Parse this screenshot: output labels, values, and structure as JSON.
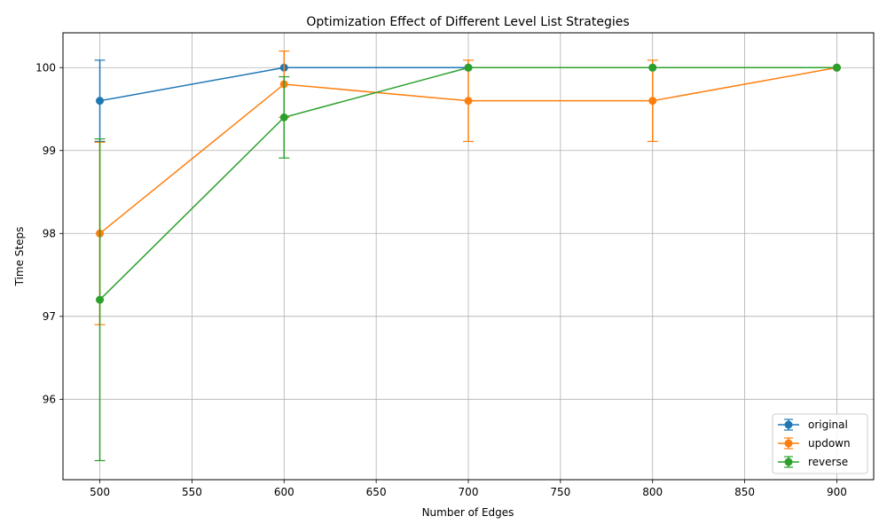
{
  "chart_data": {
    "type": "line",
    "title": "Optimization Effect of Different Level List Strategies",
    "xlabel": "Number of Edges",
    "ylabel": "Time Steps",
    "xlim": [
      480,
      920
    ],
    "ylim": [
      95.03,
      100.42
    ],
    "x_ticks": [
      500,
      550,
      600,
      650,
      700,
      750,
      800,
      850,
      900
    ],
    "y_ticks": [
      96,
      97,
      98,
      99,
      100
    ],
    "grid": true,
    "legend_position": "lower-right",
    "series": [
      {
        "name": "original",
        "color": "#1f77b4",
        "x": [
          500,
          600,
          700,
          800,
          900
        ],
        "y": [
          99.6,
          100.0,
          100.0,
          100.0,
          100.0
        ],
        "err": [
          0.49,
          0.0,
          0.0,
          0.0,
          0.0
        ]
      },
      {
        "name": "updown",
        "color": "#ff7f0e",
        "x": [
          500,
          600,
          700,
          800,
          900
        ],
        "y": [
          98.0,
          99.8,
          99.6,
          99.6,
          100.0
        ],
        "err": [
          1.1,
          0.4,
          0.49,
          0.49,
          0.0
        ]
      },
      {
        "name": "reverse",
        "color": "#2ca02c",
        "x": [
          500,
          600,
          700,
          800,
          900
        ],
        "y": [
          97.2,
          99.4,
          100.0,
          100.0,
          100.0
        ],
        "err": [
          1.94,
          0.49,
          0.0,
          0.0,
          0.0
        ]
      }
    ]
  }
}
